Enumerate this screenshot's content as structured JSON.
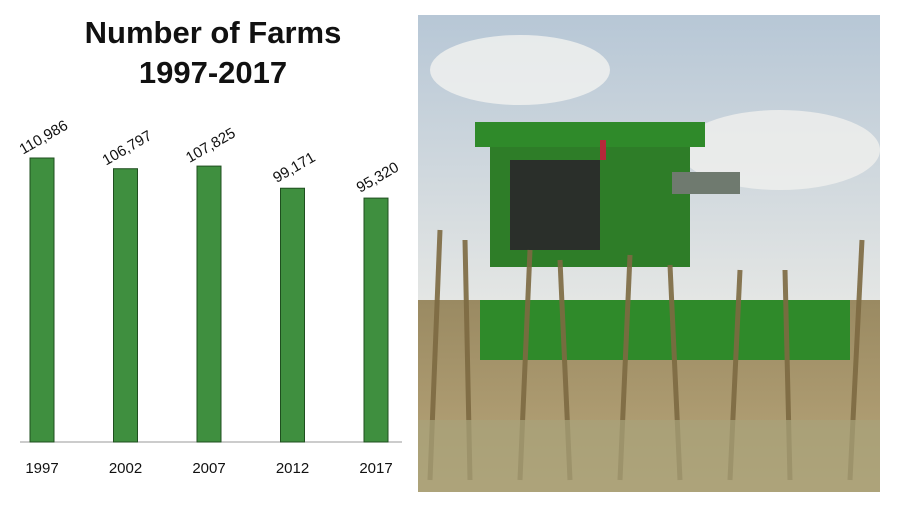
{
  "chart_data": {
    "type": "bar",
    "title": "Number of Farms",
    "subtitle": "1997-2017",
    "categories": [
      "1997",
      "2002",
      "2007",
      "2012",
      "2017"
    ],
    "values": [
      110986,
      106797,
      107825,
      99171,
      95320
    ],
    "value_labels": [
      "110,986",
      "106,797",
      "107,825",
      "99,171",
      "95,320"
    ],
    "color": "#3f8f3f"
  }
}
